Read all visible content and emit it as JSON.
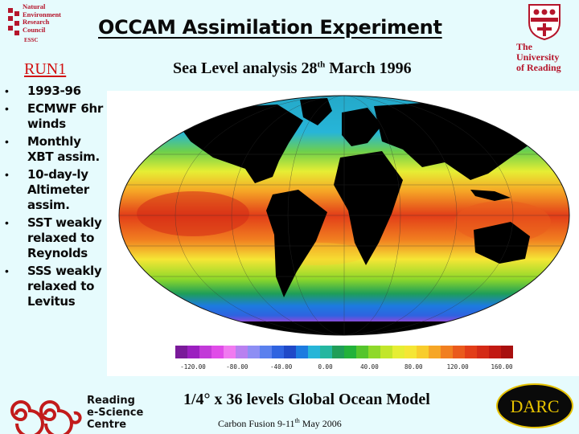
{
  "header": {
    "nerc_logo_lines": [
      "Natural",
      "Environment",
      "Research",
      "Council"
    ],
    "nerc_logo_sub": "ESSC",
    "title": "OCCAM Assimilation Experiment",
    "university_logo_lines": [
      "The",
      "University",
      "of Reading"
    ]
  },
  "run_label": "RUN1",
  "map_title": {
    "prefix": "Sea Level analysis 28",
    "superscript": "th",
    "suffix": " March 1996"
  },
  "bullets": [
    "1993-96",
    "ECMWF 6hr winds",
    "Monthly XBT assim.",
    "10-day-ly Altimeter assim.",
    "SST weakly relaxed to Reynolds",
    "SSS weakly relaxed to Levitus"
  ],
  "colorbar": {
    "tick_labels": [
      "-120.00",
      "-80.00",
      "-40.00",
      "0.00",
      "40.00",
      "80.00",
      "120.00",
      "160.00"
    ],
    "colors": [
      "#7a1a9a",
      "#9b1fc0",
      "#c23ad8",
      "#e04ce8",
      "#f07af0",
      "#b880f0",
      "#8d8ef4",
      "#5a80ee",
      "#2f63e0",
      "#1f49c8",
      "#1c7be0",
      "#27b5d8",
      "#24b7a0",
      "#1f9e58",
      "#22b23a",
      "#55c52c",
      "#8fd92a",
      "#c2e62a",
      "#e6ee34",
      "#f5e635",
      "#f8cd2c",
      "#f6a626",
      "#f17f20",
      "#ea5a1c",
      "#e23d18",
      "#d42a16",
      "#c21912",
      "#a80f0e"
    ]
  },
  "footer": {
    "resc_lines": [
      "Reading",
      "e-Science",
      "Centre"
    ],
    "model_caption": "1/4° x 36 levels Global Ocean Model",
    "event_prefix": "Carbon Fusion 9-11",
    "event_superscript": "th",
    "event_suffix": " May 2006",
    "darc_logo": "DARC"
  },
  "colors": {
    "background": "#e6fbfd",
    "title_red": "#d11010",
    "logo_red": "#b5152b",
    "darc_gold": "#e6c200"
  }
}
